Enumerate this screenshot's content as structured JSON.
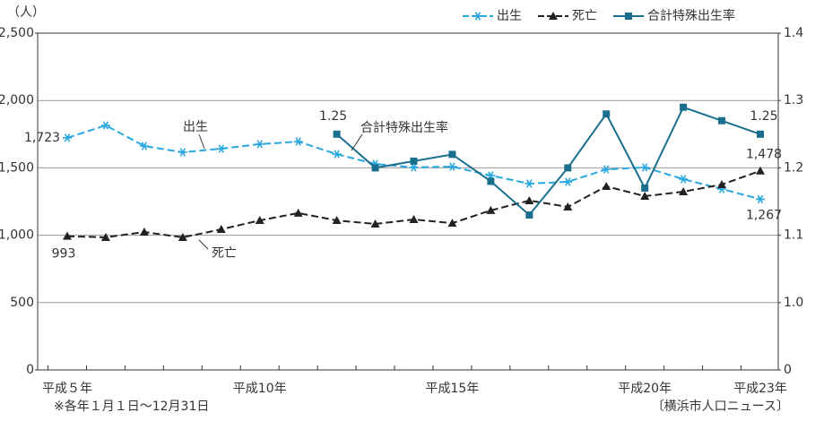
{
  "chart_data": {
    "type": "line",
    "y_unit_label": "（人）",
    "footnote": "※各年１月１日～12月31日",
    "source": "〔横浜市人口ニュース〕",
    "categories": [
      "平成５年",
      null,
      null,
      null,
      null,
      "平成10年",
      null,
      null,
      null,
      null,
      "平成15年",
      null,
      null,
      null,
      null,
      "平成20年",
      null,
      null,
      "平成23年"
    ],
    "series": [
      {
        "name": "出生",
        "color": "#29a8e0",
        "marker": "asterisk",
        "dash": true,
        "values": [
          1723,
          1815,
          1662,
          1616,
          1642,
          1676,
          1695,
          1602,
          1529,
          1503,
          1509,
          1443,
          1383,
          1396,
          1489,
          1503,
          1416,
          1343,
          1267
        ],
        "value_labels": [
          "1,723",
          null,
          null,
          null,
          null,
          null,
          null,
          null,
          null,
          null,
          null,
          null,
          null,
          null,
          null,
          null,
          null,
          null,
          "1,267"
        ]
      },
      {
        "name": "死亡",
        "color": "#222222",
        "marker": "triangle",
        "dash": true,
        "values": [
          993,
          984,
          1024,
          984,
          1044,
          1110,
          1164,
          1110,
          1084,
          1117,
          1090,
          1184,
          1257,
          1210,
          1363,
          1290,
          1323,
          1376,
          1478
        ],
        "value_labels": [
          "993",
          null,
          null,
          null,
          null,
          null,
          null,
          null,
          null,
          null,
          null,
          null,
          null,
          null,
          null,
          null,
          null,
          null,
          "1,478"
        ]
      },
      {
        "name": "合計特殊出生率",
        "color": "#1a6f8f",
        "marker": "square",
        "dash": false,
        "axis": "y2",
        "values": [
          null,
          null,
          null,
          null,
          null,
          null,
          null,
          1.25,
          1.2,
          1.21,
          1.22,
          1.18,
          1.13,
          1.2,
          1.28,
          1.17,
          1.29,
          1.27,
          1.25
        ],
        "value_labels": [
          null,
          null,
          null,
          null,
          null,
          null,
          null,
          null,
          null,
          null,
          null,
          null,
          null,
          null,
          null,
          null,
          null,
          null,
          null
        ]
      }
    ],
    "ylim": [
      0,
      2500
    ],
    "yticks": [
      0,
      500,
      {
        "value": 1000,
        "label": "1,000"
      },
      {
        "value": 1500,
        "label": "1,500"
      },
      {
        "value": 2000,
        "label": "2,000"
      },
      {
        "value": 2500,
        "label": "2,500"
      }
    ],
    "y2lim": [
      0.9,
      1.4
    ],
    "y2ticks": [
      0,
      {
        "value": 1,
        "label": "1.0"
      },
      1.1,
      1.2,
      1.3,
      1.4
    ],
    "grid": true,
    "legend": "top-right"
  }
}
